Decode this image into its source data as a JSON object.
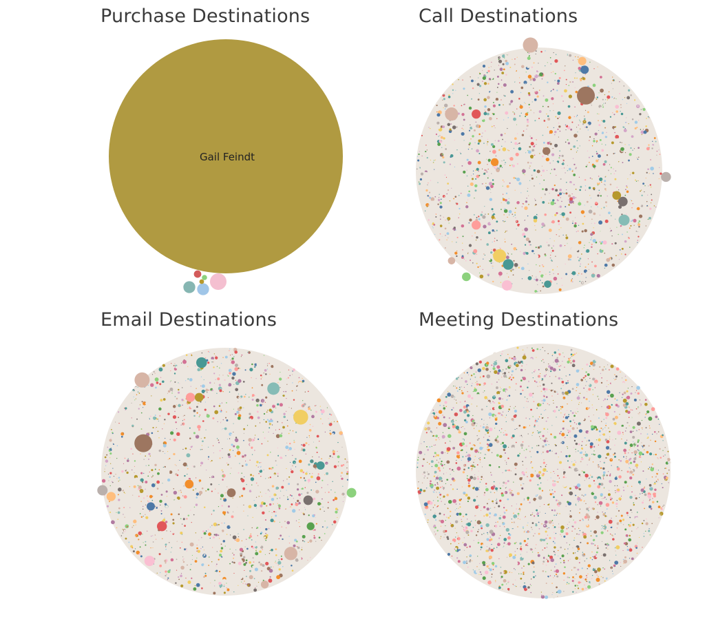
{
  "palette": [
    "#4e79a7",
    "#a0cbe8",
    "#f28e2b",
    "#ffbe7d",
    "#59a14f",
    "#8cd17d",
    "#b6992d",
    "#f1ce63",
    "#499894",
    "#86bcb6",
    "#e15759",
    "#ff9d9a",
    "#79706e",
    "#bab0ac",
    "#d37295",
    "#fabfd2",
    "#b07aa1",
    "#d4a6c8",
    "#9d7660",
    "#d7b5a6"
  ],
  "filler_color": "#ece6df",
  "chart_data": [
    {
      "type": "packed-bubble",
      "title": "Purchase Destinations",
      "bubbles": [
        {
          "label": "Gail Feindt",
          "value": 10000,
          "color": "#b09a41"
        },
        {
          "label": "",
          "value": 50,
          "color": "#f4bfd0"
        },
        {
          "label": "",
          "value": 26,
          "color": "#86b6b2"
        },
        {
          "label": "",
          "value": 26,
          "color": "#a0c6e8"
        },
        {
          "label": "",
          "value": 10,
          "color": "#d35b5b"
        },
        {
          "label": "",
          "value": 5,
          "color": "#8cd17d"
        },
        {
          "label": "",
          "value": 4,
          "color": "#b6992d"
        }
      ]
    },
    {
      "type": "packed-bubble",
      "title": "Call Destinations",
      "notable": [
        {
          "value": 420,
          "color": "#9d7660"
        },
        {
          "value": 300,
          "color": "#d7b5a6"
        },
        {
          "value": 230,
          "color": "#d7b5a6"
        },
        {
          "value": 230,
          "color": "#f1ce63"
        },
        {
          "value": 160,
          "color": "#86bcb6"
        },
        {
          "value": 150,
          "color": "#499894"
        },
        {
          "value": 140,
          "color": "#fabfd2"
        },
        {
          "value": 130,
          "color": "#bab0ac"
        },
        {
          "value": 120,
          "color": "#79706e"
        },
        {
          "value": 110,
          "color": "#e15759"
        },
        {
          "value": 110,
          "color": "#ff9d9a"
        },
        {
          "value": 100,
          "color": "#8cd17d"
        },
        {
          "value": 100,
          "color": "#b6992d"
        },
        {
          "value": 90,
          "color": "#4e79a7"
        },
        {
          "value": 90,
          "color": "#ffbe7d"
        },
        {
          "value": 80,
          "color": "#f28e2b"
        },
        {
          "value": 80,
          "color": "#9d7660"
        },
        {
          "value": 70,
          "color": "#499894"
        },
        {
          "value": 70,
          "color": "#d7b5a6"
        }
      ],
      "small_bubbles": 2600
    },
    {
      "type": "packed-bubble",
      "title": "Email Destinations",
      "notable": [
        {
          "value": 420,
          "color": "#9d7660"
        },
        {
          "value": 300,
          "color": "#d7b5a6"
        },
        {
          "value": 290,
          "color": "#f1ce63"
        },
        {
          "value": 230,
          "color": "#d7b5a6"
        },
        {
          "value": 200,
          "color": "#86bcb6"
        },
        {
          "value": 150,
          "color": "#499894"
        },
        {
          "value": 140,
          "color": "#fabfd2"
        },
        {
          "value": 140,
          "color": "#bab0ac"
        },
        {
          "value": 130,
          "color": "#e15759"
        },
        {
          "value": 120,
          "color": "#79706e"
        },
        {
          "value": 120,
          "color": "#8cd17d"
        },
        {
          "value": 110,
          "color": "#ff9d9a"
        },
        {
          "value": 110,
          "color": "#ffbe7d"
        },
        {
          "value": 100,
          "color": "#f28e2b"
        },
        {
          "value": 100,
          "color": "#b6992d"
        },
        {
          "value": 100,
          "color": "#9d7660"
        },
        {
          "value": 90,
          "color": "#4e79a7"
        },
        {
          "value": 90,
          "color": "#499894"
        },
        {
          "value": 80,
          "color": "#d7b5a6"
        },
        {
          "value": 80,
          "color": "#59a14f"
        }
      ],
      "small_bubbles": 2600
    },
    {
      "type": "packed-bubble",
      "title": "Meeting Destinations",
      "notable": [],
      "small_bubbles": 4200
    }
  ]
}
